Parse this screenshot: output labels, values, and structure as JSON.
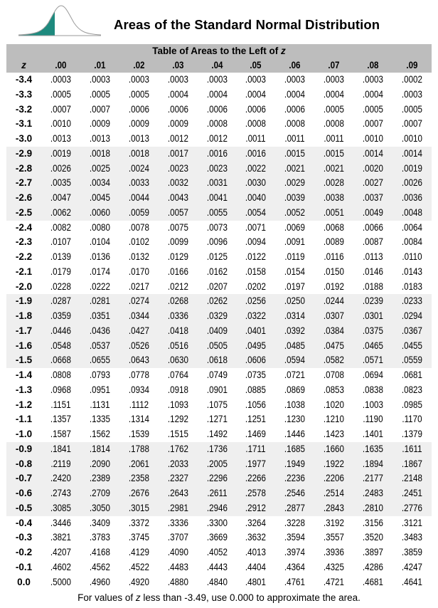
{
  "title": "Areas of the Standard Normal Distribution",
  "caption_prefix": "Table of Areas to the Left of ",
  "caption_var": "z",
  "columns": [
    "z",
    ".00",
    ".01",
    ".02",
    ".03",
    ".04",
    ".05",
    ".06",
    ".07",
    ".08",
    ".09"
  ],
  "rows": [
    [
      "-3.4",
      ".0003",
      ".0003",
      ".0003",
      ".0003",
      ".0003",
      ".0003",
      ".0003",
      ".0003",
      ".0003",
      ".0002"
    ],
    [
      "-3.3",
      ".0005",
      ".0005",
      ".0005",
      ".0004",
      ".0004",
      ".0004",
      ".0004",
      ".0004",
      ".0004",
      ".0003"
    ],
    [
      "-3.2",
      ".0007",
      ".0007",
      ".0006",
      ".0006",
      ".0006",
      ".0006",
      ".0006",
      ".0005",
      ".0005",
      ".0005"
    ],
    [
      "-3.1",
      ".0010",
      ".0009",
      ".0009",
      ".0009",
      ".0008",
      ".0008",
      ".0008",
      ".0008",
      ".0007",
      ".0007"
    ],
    [
      "-3.0",
      ".0013",
      ".0013",
      ".0013",
      ".0012",
      ".0012",
      ".0011",
      ".0011",
      ".0011",
      ".0010",
      ".0010"
    ],
    [
      "-2.9",
      ".0019",
      ".0018",
      ".0018",
      ".0017",
      ".0016",
      ".0016",
      ".0015",
      ".0015",
      ".0014",
      ".0014"
    ],
    [
      "-2.8",
      ".0026",
      ".0025",
      ".0024",
      ".0023",
      ".0023",
      ".0022",
      ".0021",
      ".0021",
      ".0020",
      ".0019"
    ],
    [
      "-2.7",
      ".0035",
      ".0034",
      ".0033",
      ".0032",
      ".0031",
      ".0030",
      ".0029",
      ".0028",
      ".0027",
      ".0026"
    ],
    [
      "-2.6",
      ".0047",
      ".0045",
      ".0044",
      ".0043",
      ".0041",
      ".0040",
      ".0039",
      ".0038",
      ".0037",
      ".0036"
    ],
    [
      "-2.5",
      ".0062",
      ".0060",
      ".0059",
      ".0057",
      ".0055",
      ".0054",
      ".0052",
      ".0051",
      ".0049",
      ".0048"
    ],
    [
      "-2.4",
      ".0082",
      ".0080",
      ".0078",
      ".0075",
      ".0073",
      ".0071",
      ".0069",
      ".0068",
      ".0066",
      ".0064"
    ],
    [
      "-2.3",
      ".0107",
      ".0104",
      ".0102",
      ".0099",
      ".0096",
      ".0094",
      ".0091",
      ".0089",
      ".0087",
      ".0084"
    ],
    [
      "-2.2",
      ".0139",
      ".0136",
      ".0132",
      ".0129",
      ".0125",
      ".0122",
      ".0119",
      ".0116",
      ".0113",
      ".0110"
    ],
    [
      "-2.1",
      ".0179",
      ".0174",
      ".0170",
      ".0166",
      ".0162",
      ".0158",
      ".0154",
      ".0150",
      ".0146",
      ".0143"
    ],
    [
      "-2.0",
      ".0228",
      ".0222",
      ".0217",
      ".0212",
      ".0207",
      ".0202",
      ".0197",
      ".0192",
      ".0188",
      ".0183"
    ],
    [
      "-1.9",
      ".0287",
      ".0281",
      ".0274",
      ".0268",
      ".0262",
      ".0256",
      ".0250",
      ".0244",
      ".0239",
      ".0233"
    ],
    [
      "-1.8",
      ".0359",
      ".0351",
      ".0344",
      ".0336",
      ".0329",
      ".0322",
      ".0314",
      ".0307",
      ".0301",
      ".0294"
    ],
    [
      "-1.7",
      ".0446",
      ".0436",
      ".0427",
      ".0418",
      ".0409",
      ".0401",
      ".0392",
      ".0384",
      ".0375",
      ".0367"
    ],
    [
      "-1.6",
      ".0548",
      ".0537",
      ".0526",
      ".0516",
      ".0505",
      ".0495",
      ".0485",
      ".0475",
      ".0465",
      ".0455"
    ],
    [
      "-1.5",
      ".0668",
      ".0655",
      ".0643",
      ".0630",
      ".0618",
      ".0606",
      ".0594",
      ".0582",
      ".0571",
      ".0559"
    ],
    [
      "-1.4",
      ".0808",
      ".0793",
      ".0778",
      ".0764",
      ".0749",
      ".0735",
      ".0721",
      ".0708",
      ".0694",
      ".0681"
    ],
    [
      "-1.3",
      ".0968",
      ".0951",
      ".0934",
      ".0918",
      ".0901",
      ".0885",
      ".0869",
      ".0853",
      ".0838",
      ".0823"
    ],
    [
      "-1.2",
      ".1151",
      ".1131",
      ".1112",
      ".1093",
      ".1075",
      ".1056",
      ".1038",
      ".1020",
      ".1003",
      ".0985"
    ],
    [
      "-1.1",
      ".1357",
      ".1335",
      ".1314",
      ".1292",
      ".1271",
      ".1251",
      ".1230",
      ".1210",
      ".1190",
      ".1170"
    ],
    [
      "-1.0",
      ".1587",
      ".1562",
      ".1539",
      ".1515",
      ".1492",
      ".1469",
      ".1446",
      ".1423",
      ".1401",
      ".1379"
    ],
    [
      "-0.9",
      ".1841",
      ".1814",
      ".1788",
      ".1762",
      ".1736",
      ".1711",
      ".1685",
      ".1660",
      ".1635",
      ".1611"
    ],
    [
      "-0.8",
      ".2119",
      ".2090",
      ".2061",
      ".2033",
      ".2005",
      ".1977",
      ".1949",
      ".1922",
      ".1894",
      ".1867"
    ],
    [
      "-0.7",
      ".2420",
      ".2389",
      ".2358",
      ".2327",
      ".2296",
      ".2266",
      ".2236",
      ".2206",
      ".2177",
      ".2148"
    ],
    [
      "-0.6",
      ".2743",
      ".2709",
      ".2676",
      ".2643",
      ".2611",
      ".2578",
      ".2546",
      ".2514",
      ".2483",
      ".2451"
    ],
    [
      "-0.5",
      ".3085",
      ".3050",
      ".3015",
      ".2981",
      ".2946",
      ".2912",
      ".2877",
      ".2843",
      ".2810",
      ".2776"
    ],
    [
      "-0.4",
      ".3446",
      ".3409",
      ".3372",
      ".3336",
      ".3300",
      ".3264",
      ".3228",
      ".3192",
      ".3156",
      ".3121"
    ],
    [
      "-0.3",
      ".3821",
      ".3783",
      ".3745",
      ".3707",
      ".3669",
      ".3632",
      ".3594",
      ".3557",
      ".3520",
      ".3483"
    ],
    [
      "-0.2",
      ".4207",
      ".4168",
      ".4129",
      ".4090",
      ".4052",
      ".4013",
      ".3974",
      ".3936",
      ".3897",
      ".3859"
    ],
    [
      "-0.1",
      ".4602",
      ".4562",
      ".4522",
      ".4483",
      ".4443",
      ".4404",
      ".4364",
      ".4325",
      ".4286",
      ".4247"
    ],
    [
      "0.0",
      ".5000",
      ".4960",
      ".4920",
      ".4880",
      ".4840",
      ".4801",
      ".4761",
      ".4721",
      ".4681",
      ".4641"
    ]
  ],
  "footer_prefix": "For values of ",
  "footer_var": "z",
  "footer_suffix": "  less than -3.49, use 0.000 to approximate the area.",
  "colors": {
    "header_gray": "#bdbdbd",
    "row_shade": "#efefef",
    "curve_fill": "#1e8a7e"
  },
  "icon": "normal-curve-left-tail-icon"
}
